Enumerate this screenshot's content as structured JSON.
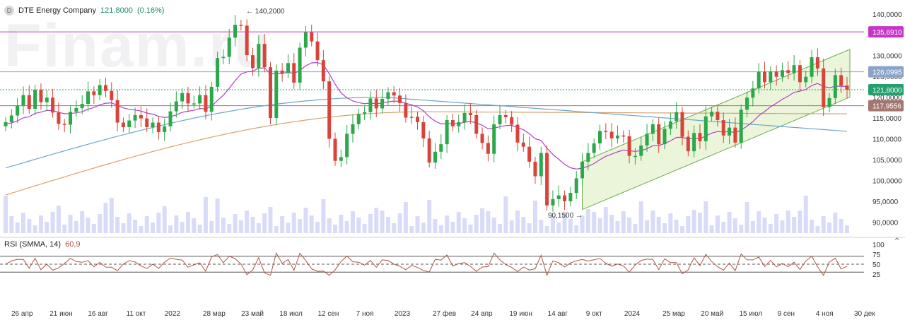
{
  "header": {
    "badge": "D",
    "name": "DTE Energy Company",
    "last": "121.8000",
    "change": "(0.16%)"
  },
  "watermark": "Finam.ru",
  "rsi": {
    "label": "RSI (SMMA, 14)",
    "value": "60,9"
  },
  "colors": {
    "up": "#2ba84a",
    "down": "#d9443a",
    "ma_purple": "#b23fc4",
    "ma_blue": "#6aa6c7",
    "ma_orange": "#d9a26c",
    "volume": "#c9cdf5",
    "channel": "#5ea33a",
    "rsi": "#b2553f"
  },
  "chart_data": {
    "type": "candlestick",
    "price_axis": {
      "ticks": [
        "140,0000",
        "135,0000",
        "130,0000",
        "125,0000",
        "120,0000",
        "115,0000",
        "110,0000",
        "105,0000",
        "100,0000",
        "95,0000",
        "90,0000"
      ],
      "range": [
        87,
        142
      ]
    },
    "time_axis": [
      "26 апр",
      "21 июн",
      "16 авг",
      "11 окт",
      "2022",
      "28 мар",
      "23 май",
      "18 июл",
      "12 сен",
      "7 ноя",
      "2023",
      "27 фев",
      "24 апр",
      "19 июн",
      "14 авг",
      "9 окт",
      "2024",
      "25 мар",
      "20 май",
      "15 июл",
      "9 сен",
      "4 ноя",
      "30 дек"
    ],
    "price_labels": [
      {
        "value": "135,6910",
        "price": 135.691,
        "color": "#c636c6"
      },
      {
        "value": "126,0995",
        "price": 126.0995,
        "color": "#8aa3c7"
      },
      {
        "value": "121,8000",
        "price": 121.8,
        "color": "#24a06e"
      },
      {
        "value": "117,9556",
        "price": 117.9556,
        "color": "#a3766f"
      }
    ],
    "annotations": [
      {
        "text": "140,2000",
        "kind": "high"
      },
      {
        "text": "90,1500",
        "kind": "low"
      }
    ],
    "closes": [
      114.0,
      115.6,
      118.0,
      120.5,
      117.2,
      121.8,
      118.8,
      119.9,
      116.3,
      113.6,
      113.4,
      116.5,
      117.4,
      118.4,
      121.4,
      120.5,
      122.9,
      121.5,
      119.3,
      113.9,
      112.8,
      114.4,
      115.7,
      114.9,
      112.8,
      113.9,
      111.6,
      113.0,
      116.6,
      119.0,
      121.0,
      118.5,
      118.5,
      120.5,
      116.5,
      122.5,
      129.4,
      129.7,
      134.3,
      137.4,
      137.2,
      130.1,
      127.0,
      132.8,
      127.2,
      115.0,
      126.4,
      125.8,
      128.2,
      123.5,
      131.9,
      135.6,
      133.4,
      128.9,
      123.8,
      110.0,
      104.7,
      105.6,
      111.2,
      113.5,
      116.0,
      116.4,
      119.7,
      117.3,
      119.6,
      121.2,
      120.4,
      118.6,
      115.1,
      115.3,
      114.0,
      110.1,
      104.3,
      106.9,
      108.7,
      114.5,
      113.0,
      114.0,
      116.2,
      115.7,
      111.2,
      109.0,
      106.4,
      113.5,
      115.7,
      115.2,
      113.4,
      109.1,
      108.1,
      104.5,
      101.0,
      106.6,
      94.0,
      95.5,
      96.4,
      95.0,
      97.0,
      100.5,
      104.5,
      106.6,
      108.9,
      111.9,
      111.7,
      110.1,
      110.8,
      110.6,
      105.9,
      105.9,
      108.4,
      111.2,
      113.5,
      108.7,
      112.4,
      114.2,
      116.4,
      110.5,
      107.0,
      111.4,
      109.4,
      115.4,
      116.5,
      114.5,
      110.8,
      112.7,
      109.1,
      117.0,
      119.9,
      122.1,
      126.1,
      123.6,
      126.2,
      124.9,
      126.5,
      125.8,
      127.7,
      123.6,
      124.9,
      129.6,
      126.9,
      117.6,
      119.8,
      125.3,
      122.8,
      121.8
    ],
    "ma_purple_end": 115.5,
    "ma_blue_end": 111.8,
    "ma_orange_end": 116.0,
    "rsi_axis": {
      "ticks": [
        "100",
        "75",
        "50",
        "25"
      ],
      "levels": [
        70,
        50,
        30
      ]
    }
  }
}
